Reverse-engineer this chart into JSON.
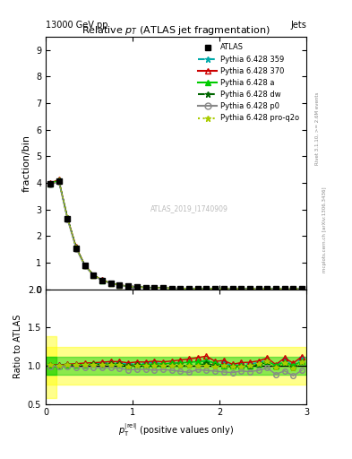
{
  "title": "Relative $p_T$ (ATLAS jet fragmentation)",
  "top_left_label": "13000 GeV pp",
  "top_right_label": "Jets",
  "ylabel_main": "fraction/bin",
  "ylabel_ratio": "Ratio to ATLAS",
  "watermark": "ATLAS_2019_I1740909",
  "x_data": [
    0.05,
    0.15,
    0.25,
    0.35,
    0.45,
    0.55,
    0.65,
    0.75,
    0.85,
    0.95,
    1.05,
    1.15,
    1.25,
    1.35,
    1.45,
    1.55,
    1.65,
    1.75,
    1.85,
    1.95,
    2.05,
    2.15,
    2.25,
    2.35,
    2.45,
    2.55,
    2.65,
    2.75,
    2.85,
    2.95
  ],
  "atlas_y": [
    3.95,
    4.08,
    2.65,
    1.55,
    0.88,
    0.52,
    0.33,
    0.22,
    0.15,
    0.11,
    0.082,
    0.063,
    0.05,
    0.04,
    0.033,
    0.027,
    0.023,
    0.019,
    0.016,
    0.014,
    0.012,
    0.011,
    0.01,
    0.009,
    0.008,
    0.007,
    0.007,
    0.006,
    0.006,
    0.005
  ],
  "atlas_err": [
    0.05,
    0.05,
    0.04,
    0.03,
    0.02,
    0.01,
    0.008,
    0.005,
    0.004,
    0.003,
    0.002,
    0.002,
    0.002,
    0.001,
    0.001,
    0.001,
    0.001,
    0.001,
    0.001,
    0.0005,
    0.0005,
    0.0005,
    0.0005,
    0.0004,
    0.0004,
    0.0004,
    0.0003,
    0.0003,
    0.0003,
    0.0002
  ],
  "p359_y": [
    3.95,
    4.1,
    2.68,
    1.57,
    0.89,
    0.53,
    0.34,
    0.23,
    0.155,
    0.112,
    0.084,
    0.065,
    0.052,
    0.041,
    0.034,
    0.028,
    0.024,
    0.02,
    0.017,
    0.0145,
    0.0125,
    0.011,
    0.0102,
    0.0092,
    0.0083,
    0.0075,
    0.007,
    0.0065,
    0.006,
    0.0055
  ],
  "p370_y": [
    4.0,
    4.12,
    2.7,
    1.59,
    0.91,
    0.54,
    0.345,
    0.232,
    0.158,
    0.114,
    0.086,
    0.066,
    0.053,
    0.042,
    0.035,
    0.029,
    0.025,
    0.021,
    0.018,
    0.0148,
    0.0128,
    0.0112,
    0.0104,
    0.0094,
    0.0085,
    0.0077,
    0.0071,
    0.0066,
    0.0062,
    0.0056
  ],
  "pa_y": [
    3.98,
    4.09,
    2.67,
    1.56,
    0.89,
    0.53,
    0.335,
    0.225,
    0.153,
    0.11,
    0.083,
    0.064,
    0.051,
    0.041,
    0.034,
    0.028,
    0.024,
    0.02,
    0.017,
    0.0145,
    0.012,
    0.011,
    0.01,
    0.009,
    0.0082,
    0.0074,
    0.007,
    0.0063,
    0.006,
    0.0053
  ],
  "pdw_y": [
    3.97,
    4.09,
    2.67,
    1.56,
    0.89,
    0.53,
    0.335,
    0.225,
    0.153,
    0.11,
    0.083,
    0.063,
    0.05,
    0.04,
    0.033,
    0.027,
    0.023,
    0.019,
    0.0165,
    0.014,
    0.012,
    0.0108,
    0.0099,
    0.0089,
    0.0081,
    0.0073,
    0.0068,
    0.0062,
    0.0058,
    0.0052
  ],
  "pp0_y": [
    3.92,
    4.05,
    2.62,
    1.52,
    0.86,
    0.51,
    0.32,
    0.215,
    0.145,
    0.104,
    0.078,
    0.06,
    0.047,
    0.038,
    0.031,
    0.025,
    0.021,
    0.018,
    0.015,
    0.013,
    0.011,
    0.01,
    0.0093,
    0.0083,
    0.0075,
    0.0068,
    0.0062,
    0.0056,
    0.0052,
    0.0047
  ],
  "pproq2o_y": [
    3.97,
    4.09,
    2.67,
    1.56,
    0.885,
    0.525,
    0.334,
    0.223,
    0.152,
    0.109,
    0.082,
    0.063,
    0.05,
    0.04,
    0.033,
    0.027,
    0.023,
    0.019,
    0.016,
    0.0138,
    0.012,
    0.0108,
    0.0099,
    0.009,
    0.0082,
    0.0074,
    0.0068,
    0.0062,
    0.0058,
    0.0052
  ],
  "ylim_main": [
    0,
    9.5
  ],
  "ylim_ratio": [
    0.5,
    2.0
  ],
  "xlim": [
    0,
    3.0
  ],
  "yticks_main": [
    0,
    1,
    2,
    3,
    4,
    5,
    6,
    7,
    8,
    9
  ],
  "yticks_ratio": [
    0.5,
    1.0,
    1.5,
    2.0
  ],
  "color_atlas": "#000000",
  "color_p359": "#00aaaa",
  "color_p370": "#cc0000",
  "color_pa": "#00cc00",
  "color_pdw": "#006600",
  "color_pp0": "#888888",
  "color_pproq2o": "#aacc00",
  "band_color_yellow": "#ffff00",
  "band_color_green": "#00cc00",
  "band_alpha": 0.45,
  "legend_labels": [
    "ATLAS",
    "Pythia 6.428 359",
    "Pythia 6.428 370",
    "Pythia 6.428 a",
    "Pythia 6.428 dw",
    "Pythia 6.428 p0",
    "Pythia 6.428 pro-q2o"
  ],
  "right_label1": "Rivet 3.1.10, >= 2.6M events",
  "right_label2": "mcplots.cern.ch [arXiv:1306.3436]"
}
